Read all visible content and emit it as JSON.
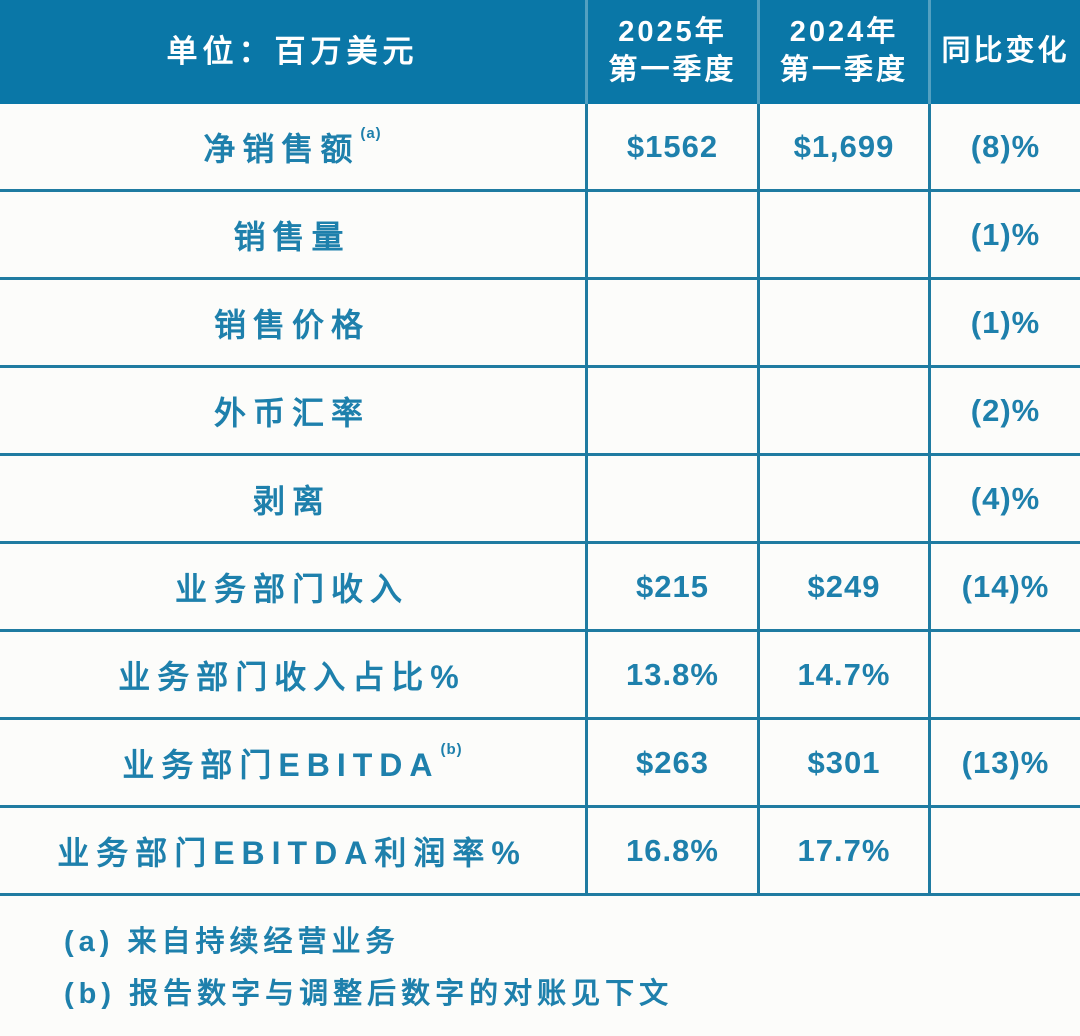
{
  "table": {
    "header": {
      "col1": "单位：百万美元",
      "col2": "2025年\n第一季度",
      "col3": "2024年\n第一季度",
      "col4": "同比变化"
    },
    "rows": [
      {
        "label": "净销售额",
        "sup": "(a)",
        "v2025": "$1562",
        "v2024": "$1,699",
        "yoy": "(8)%"
      },
      {
        "label": "销售量",
        "sup": "",
        "v2025": "",
        "v2024": "",
        "yoy": "(1)%"
      },
      {
        "label": "销售价格",
        "sup": "",
        "v2025": "",
        "v2024": "",
        "yoy": "(1)%"
      },
      {
        "label": "外币汇率",
        "sup": "",
        "v2025": "",
        "v2024": "",
        "yoy": "(2)%"
      },
      {
        "label": "剥离",
        "sup": "",
        "v2025": "",
        "v2024": "",
        "yoy": "(4)%"
      },
      {
        "label": "业务部门收入",
        "sup": "",
        "v2025": "$215",
        "v2024": "$249",
        "yoy": "(14)%"
      },
      {
        "label": "业务部门收入占比%",
        "sup": "",
        "v2025": "13.8%",
        "v2024": "14.7%",
        "yoy": ""
      },
      {
        "label": "业务部门EBITDA",
        "sup": "(b)",
        "v2025": "$263",
        "v2024": "$301",
        "yoy": "(13)%"
      },
      {
        "label": "业务部门EBITDA利润率%",
        "sup": "",
        "v2025": "16.8%",
        "v2024": "17.7%",
        "yoy": ""
      }
    ],
    "footnotes": [
      "(a) 来自持续经营业务",
      "(b) 报告数字与调整后数字的对账见下文"
    ]
  },
  "colors": {
    "header_bg": "#0a77a7",
    "text": "#1e80ac",
    "border": "#1f7ba1",
    "page_bg": "#fcfcfa"
  }
}
